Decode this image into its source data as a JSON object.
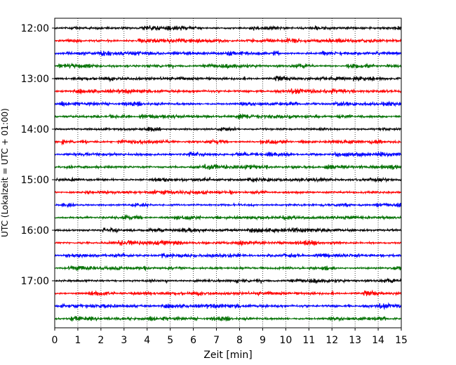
{
  "chart_data": {
    "type": "line",
    "title": "",
    "xlabel": "Zeit  [min]",
    "ylabel": "UTC (Lokalzeit = UTC + 01:00)",
    "xlim": [
      0,
      15
    ],
    "x_ticks": [
      "0",
      "1",
      "2",
      "3",
      "4",
      "5",
      "6",
      "7",
      "8",
      "9",
      "10",
      "11",
      "12",
      "13",
      "14",
      "15"
    ],
    "y_tick_labels": [
      "12:00",
      "13:00",
      "14:00",
      "15:00",
      "16:00",
      "17:00"
    ],
    "trace_interval_minutes": 15,
    "start_time": "12:00",
    "trace_colors": [
      "#000000",
      "#ff0000",
      "#0000ff",
      "#007000"
    ],
    "grid": "vertical dotted at each minute",
    "trace_count": 24
  }
}
